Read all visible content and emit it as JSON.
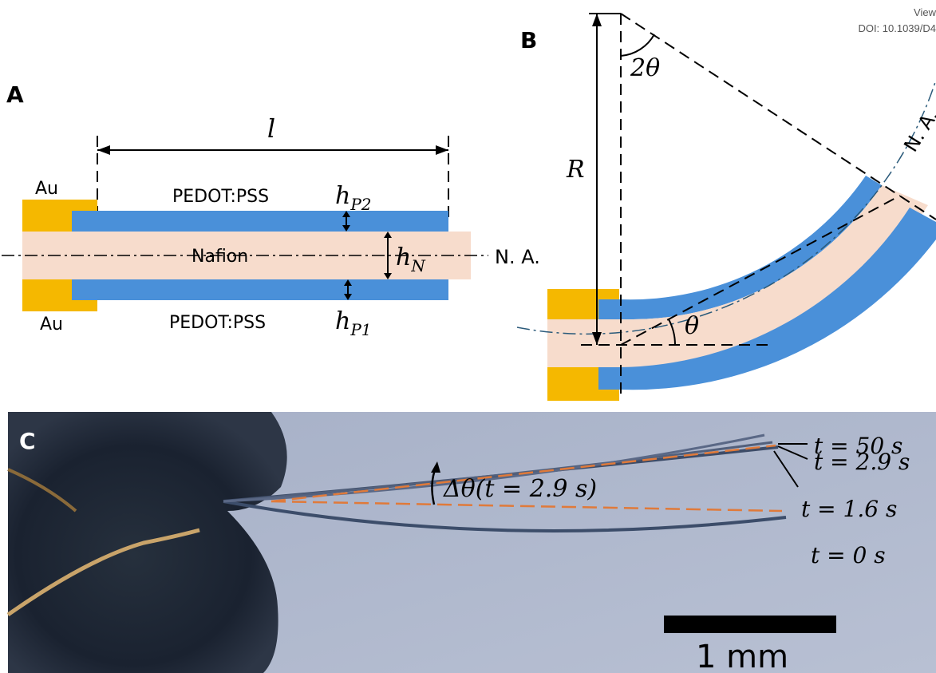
{
  "header": {
    "line1": "View",
    "line2": "DOI: 10.1039/D4"
  },
  "panel_a": {
    "letter": "A",
    "length_symbol": "l",
    "au_top": "Au",
    "au_bottom": "Au",
    "pedot_top": "PEDOT:PSS",
    "pedot_bottom": "PEDOT:PSS",
    "nafion": "Nafion",
    "na_label": "N. A.",
    "h_p2": {
      "base": "h",
      "sub": "P2"
    },
    "h_n": {
      "base": "h",
      "sub": "N"
    },
    "h_p1": {
      "base": "h",
      "sub": "P1"
    }
  },
  "panel_b": {
    "letter": "B",
    "radius_symbol": "R",
    "two_theta": "2θ",
    "theta": "θ",
    "na_label": "N. A."
  },
  "panel_c": {
    "letter": "C",
    "t50": "t  =  50 s",
    "t29": "t  = 2.9 s",
    "t16": "t  = 1.6 s",
    "t0": "t  =  0 s",
    "delta_theta": "Δθ(t = 2.9 s)",
    "scalebar": "1 mm"
  },
  "colors": {
    "gold": "#f5b800",
    "blue": "#4a90d9",
    "nafion": "#f7dccc",
    "photo_bg": "#a9b3c9",
    "dashed_orange": "#e07a3a"
  }
}
